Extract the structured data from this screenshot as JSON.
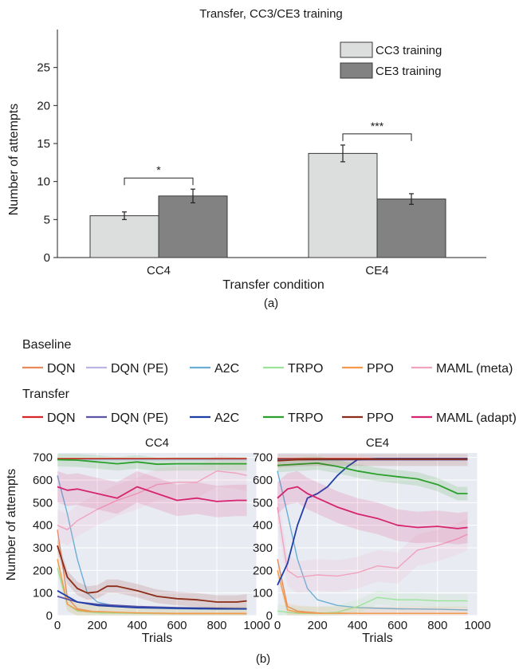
{
  "figure": {
    "panel_a_label": "(a)",
    "panel_b_label": "(b)",
    "baseline_heading": "Baseline",
    "transfer_heading": "Transfer"
  },
  "legend_baseline": [
    {
      "label": "DQN",
      "color": "#e8895a"
    },
    {
      "label": "DQN (PE)",
      "color": "#b9b6e6"
    },
    {
      "label": "A2C",
      "color": "#6aaed6"
    },
    {
      "label": "TRPO",
      "color": "#9be39b"
    },
    {
      "label": "PPO",
      "color": "#f29a4a"
    },
    {
      "label": "MAML (meta)",
      "color": "#f0a3bd"
    }
  ],
  "legend_transfer": [
    {
      "label": "DQN",
      "color": "#d62728"
    },
    {
      "label": "DQN (PE)",
      "color": "#5b55a8"
    },
    {
      "label": "A2C",
      "color": "#1f3fa8"
    },
    {
      "label": "TRPO",
      "color": "#2ca02c"
    },
    {
      "label": "PPO",
      "color": "#8c2d19"
    },
    {
      "label": "MAML (adapt)",
      "color": "#d6246e"
    }
  ],
  "chart_data": [
    {
      "type": "bar",
      "title": "Transfer, CC3/CE3 training",
      "xlabel": "Transfer condition",
      "ylabel": "Number of attempts",
      "categories": [
        "CC4",
        "CE4"
      ],
      "ylim": [
        0,
        30
      ],
      "yticks": [
        0,
        5,
        10,
        15,
        20,
        25
      ],
      "series": [
        {
          "name": "CC3 training",
          "values": [
            5.5,
            13.7
          ],
          "errors": [
            0.5,
            1.1
          ],
          "color": "#dcdedd"
        },
        {
          "name": "CE3 training",
          "values": [
            8.1,
            7.7
          ],
          "errors": [
            0.9,
            0.7
          ],
          "color": "#828282"
        }
      ],
      "significance": [
        "*",
        "***"
      ],
      "legend": "top-right",
      "grid": false
    },
    {
      "type": "line",
      "title": "CC4",
      "xlabel": "Trials",
      "ylabel": "Number of attempts",
      "xlim": [
        0,
        1000
      ],
      "ylim": [
        0,
        720
      ],
      "xticks": [
        0,
        200,
        400,
        600,
        800,
        1000
      ],
      "yticks": [
        0,
        100,
        200,
        300,
        400,
        500,
        600,
        700
      ],
      "grid": true,
      "series": [
        {
          "name": "DQN",
          "group": "Baseline",
          "color": "#e8895a",
          "x": [
            0,
            50,
            100,
            200,
            400,
            600,
            800,
            950
          ],
          "y": [
            380,
            80,
            30,
            15,
            10,
            8,
            8,
            8
          ]
        },
        {
          "name": "DQN (PE)",
          "group": "Baseline",
          "color": "#b9b6e6",
          "x": [
            0,
            100,
            200,
            400,
            600,
            800,
            950
          ],
          "y": [
            690,
            690,
            690,
            690,
            690,
            690,
            690
          ]
        },
        {
          "name": "A2C",
          "group": "Baseline",
          "color": "#6aaed6",
          "x": [
            0,
            50,
            100,
            150,
            200,
            300,
            400,
            600,
            800,
            950
          ],
          "y": [
            620,
            450,
            250,
            100,
            60,
            40,
            35,
            30,
            28,
            28
          ]
        },
        {
          "name": "TRPO",
          "group": "Baseline",
          "color": "#9be39b",
          "x": [
            0,
            50,
            100,
            200,
            400,
            600,
            800,
            950
          ],
          "y": [
            210,
            50,
            20,
            12,
            10,
            10,
            10,
            10
          ]
        },
        {
          "name": "PPO",
          "group": "Baseline",
          "color": "#f29a4a",
          "x": [
            0,
            50,
            100,
            150,
            200,
            300,
            400,
            600,
            800,
            950
          ],
          "y": [
            250,
            50,
            25,
            18,
            18,
            15,
            12,
            10,
            10,
            10
          ]
        },
        {
          "name": "MAML (meta)",
          "group": "Baseline",
          "color": "#f0a3bd",
          "x": [
            0,
            50,
            100,
            200,
            300,
            400,
            500,
            600,
            700,
            800,
            900,
            950
          ],
          "y": [
            400,
            380,
            420,
            470,
            510,
            540,
            580,
            590,
            590,
            640,
            630,
            620
          ]
        },
        {
          "name": "DQN",
          "group": "Transfer",
          "color": "#d62728",
          "x": [
            0,
            100,
            200,
            400,
            600,
            800,
            950
          ],
          "y": [
            695,
            695,
            695,
            695,
            695,
            695,
            695
          ]
        },
        {
          "name": "DQN (PE)",
          "group": "Transfer",
          "color": "#5b55a8",
          "x": [
            0,
            100,
            200,
            400,
            600,
            800,
            950
          ],
          "y": [
            85,
            60,
            50,
            40,
            35,
            32,
            30
          ]
        },
        {
          "name": "A2C",
          "group": "Transfer",
          "color": "#1f3fa8",
          "x": [
            0,
            100,
            200,
            400,
            600,
            800,
            950
          ],
          "y": [
            110,
            60,
            45,
            35,
            32,
            30,
            30
          ]
        },
        {
          "name": "TRPO",
          "group": "Transfer",
          "color": "#2ca02c",
          "x": [
            0,
            100,
            200,
            300,
            400,
            500,
            600,
            700,
            800,
            950
          ],
          "y": [
            690,
            688,
            680,
            672,
            680,
            670,
            672,
            672,
            672,
            672
          ]
        },
        {
          "name": "PPO",
          "group": "Transfer",
          "color": "#8c2d19",
          "x": [
            0,
            50,
            100,
            150,
            200,
            250,
            300,
            400,
            500,
            600,
            700,
            800,
            900,
            950
          ],
          "y": [
            310,
            170,
            120,
            100,
            105,
            130,
            130,
            110,
            85,
            75,
            70,
            60,
            60,
            65
          ]
        },
        {
          "name": "MAML (adapt)",
          "group": "Transfer",
          "color": "#d6246e",
          "x": [
            0,
            50,
            100,
            200,
            300,
            400,
            500,
            600,
            700,
            800,
            900,
            950
          ],
          "y": [
            570,
            555,
            560,
            540,
            520,
            570,
            540,
            510,
            520,
            505,
            510,
            510
          ]
        }
      ]
    },
    {
      "type": "line",
      "title": "CE4",
      "xlabel": "Trials",
      "ylabel": "",
      "xlim": [
        0,
        1000
      ],
      "ylim": [
        0,
        720
      ],
      "xticks": [
        0,
        200,
        400,
        600,
        800,
        1000
      ],
      "yticks": [
        0,
        100,
        200,
        300,
        400,
        500,
        600,
        700
      ],
      "grid": true,
      "series": [
        {
          "name": "DQN",
          "group": "Baseline",
          "color": "#e8895a",
          "x": [
            0,
            50,
            100,
            200,
            400,
            600,
            800,
            950
          ],
          "y": [
            250,
            40,
            20,
            12,
            10,
            10,
            10,
            10
          ]
        },
        {
          "name": "DQN (PE)",
          "group": "Baseline",
          "color": "#b9b6e6",
          "x": [
            0,
            100,
            200,
            400,
            600,
            800,
            950
          ],
          "y": [
            690,
            690,
            690,
            690,
            690,
            690,
            690
          ]
        },
        {
          "name": "A2C",
          "group": "Baseline",
          "color": "#6aaed6",
          "x": [
            0,
            50,
            100,
            150,
            200,
            300,
            400,
            600,
            800,
            950
          ],
          "y": [
            640,
            450,
            250,
            120,
            70,
            45,
            35,
            30,
            28,
            25
          ]
        },
        {
          "name": "TRPO",
          "group": "Baseline",
          "color": "#9be39b",
          "x": [
            0,
            100,
            200,
            300,
            400,
            500,
            600,
            700,
            800,
            950
          ],
          "y": [
            20,
            10,
            10,
            15,
            40,
            80,
            70,
            70,
            65,
            65
          ]
        },
        {
          "name": "PPO",
          "group": "Baseline",
          "color": "#f29a4a",
          "x": [
            0,
            50,
            100,
            200,
            400,
            600,
            800,
            950
          ],
          "y": [
            200,
            25,
            15,
            10,
            10,
            10,
            10,
            10
          ]
        },
        {
          "name": "MAML (meta)",
          "group": "Baseline",
          "color": "#f0a3bd",
          "x": [
            0,
            50,
            100,
            200,
            300,
            400,
            500,
            600,
            700,
            800,
            900,
            950
          ],
          "y": [
            480,
            200,
            170,
            180,
            175,
            190,
            220,
            210,
            290,
            310,
            340,
            360
          ]
        },
        {
          "name": "DQN",
          "group": "Transfer",
          "color": "#d62728",
          "x": [
            0,
            100,
            200,
            400,
            600,
            800,
            950
          ],
          "y": [
            695,
            695,
            695,
            695,
            695,
            695,
            695
          ]
        },
        {
          "name": "DQN (PE)",
          "group": "Transfer",
          "color": "#5b55a8",
          "x": [
            0,
            100,
            200,
            400,
            600,
            800,
            950
          ],
          "y": [
            690,
            690,
            690,
            690,
            690,
            690,
            690
          ]
        },
        {
          "name": "A2C",
          "group": "Transfer",
          "color": "#1f3fa8",
          "x": [
            0,
            50,
            100,
            150,
            200,
            250,
            300,
            350,
            400,
            500,
            700,
            950
          ],
          "y": [
            135,
            230,
            400,
            520,
            540,
            570,
            620,
            660,
            690,
            695,
            695,
            695
          ]
        },
        {
          "name": "TRPO",
          "group": "Transfer",
          "color": "#2ca02c",
          "x": [
            0,
            100,
            200,
            300,
            400,
            500,
            600,
            700,
            800,
            900,
            950
          ],
          "y": [
            665,
            670,
            675,
            660,
            640,
            625,
            615,
            605,
            580,
            540,
            540
          ]
        },
        {
          "name": "PPO",
          "group": "Transfer",
          "color": "#8c2d19",
          "x": [
            0,
            100,
            200,
            400,
            600,
            800,
            950
          ],
          "y": [
            685,
            690,
            692,
            692,
            692,
            692,
            692
          ]
        },
        {
          "name": "MAML (adapt)",
          "group": "Transfer",
          "color": "#d6246e",
          "x": [
            0,
            50,
            100,
            150,
            200,
            300,
            400,
            500,
            600,
            700,
            800,
            900,
            950
          ],
          "y": [
            520,
            560,
            570,
            540,
            520,
            480,
            450,
            430,
            400,
            390,
            395,
            385,
            390
          ]
        }
      ]
    }
  ]
}
